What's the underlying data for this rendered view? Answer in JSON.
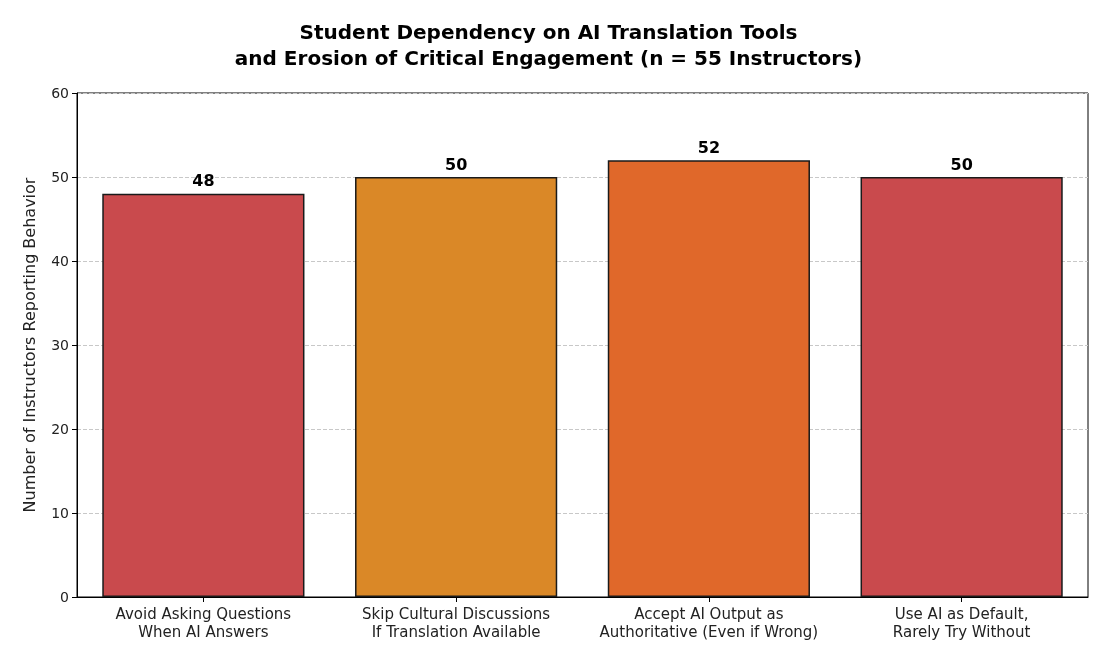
{
  "chart_data": {
    "type": "bar",
    "title": "Student Dependency on AI Translation Tools\nand Erosion of Critical Engagement (n = 55 Instructors)",
    "ylabel": "Number of Instructors Reporting Behavior",
    "categories": [
      "Avoid Asking Questions\nWhen AI Answers",
      "Skip Cultural Discussions\nIf Translation Available",
      "Accept AI Output as\nAuthoritative (Even if Wrong)",
      "Use AI as Default,\nRarely Try Without"
    ],
    "values": [
      48,
      50,
      52,
      50
    ],
    "colors": [
      "#c94a4d",
      "#da8827",
      "#e0682a",
      "#c94a4d"
    ],
    "ylim": [
      0,
      60
    ],
    "yticks": [
      0,
      10,
      20,
      30,
      40,
      50,
      60
    ],
    "grid": "y",
    "data_labels": true
  }
}
